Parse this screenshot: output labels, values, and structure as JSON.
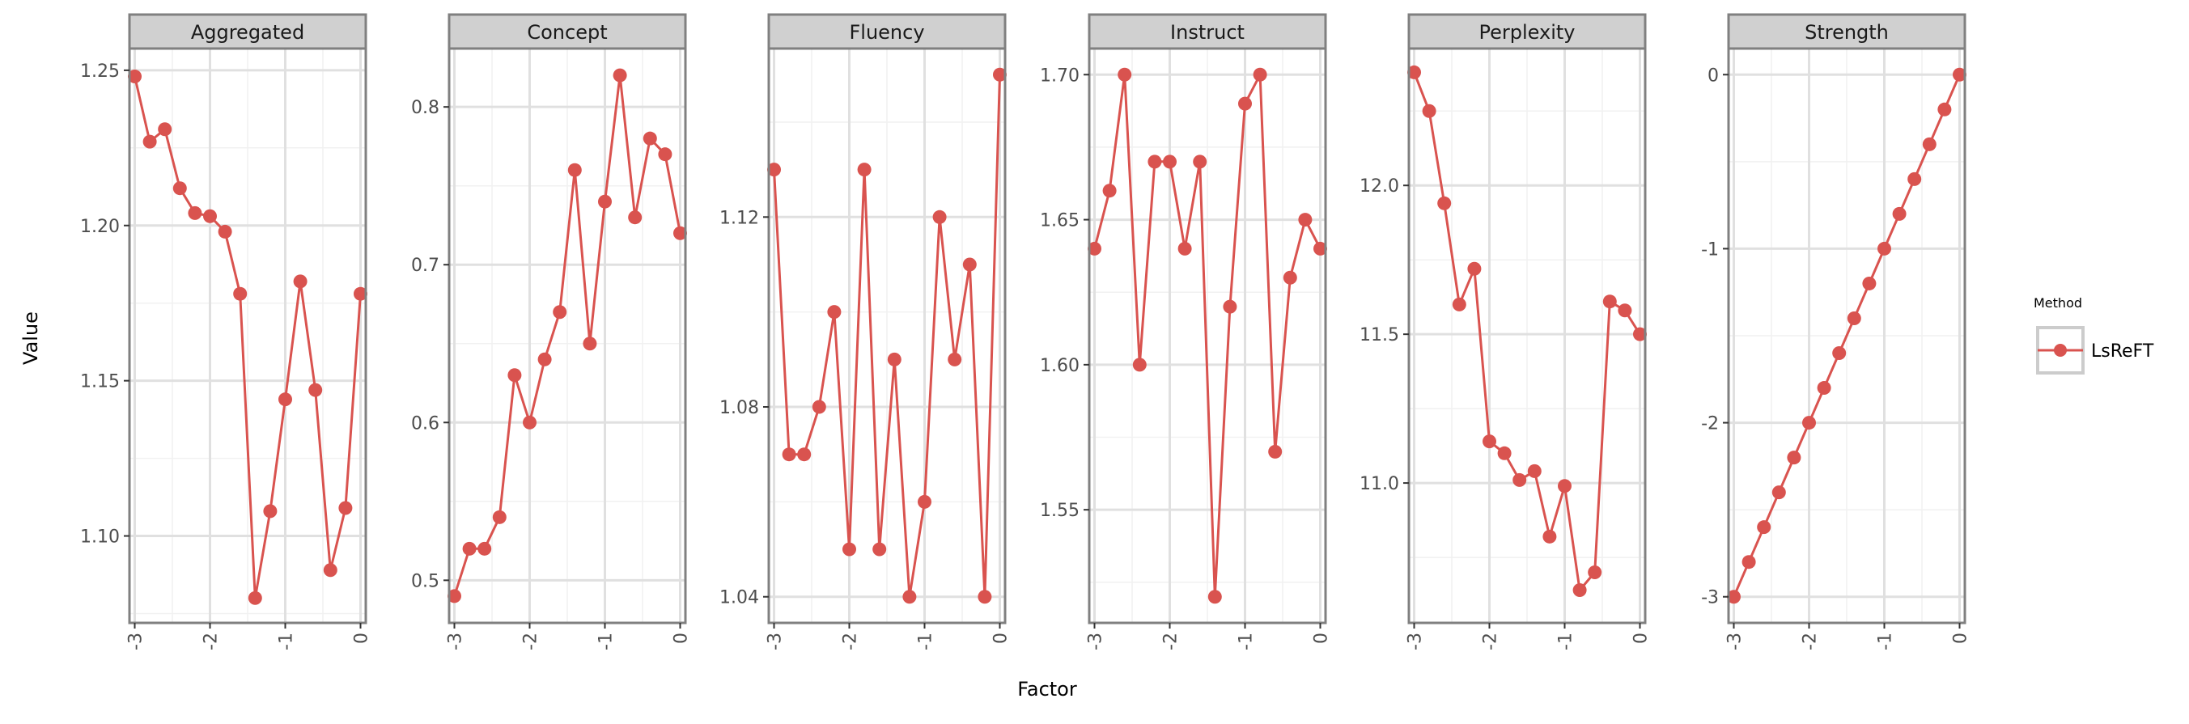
{
  "chart_data": {
    "type": "line",
    "xlabel": "Factor",
    "ylabel": "Value",
    "x": [
      -3.0,
      -2.8,
      -2.6,
      -2.4,
      -2.2,
      -2.0,
      -1.8,
      -1.6,
      -1.4,
      -1.2,
      -1.0,
      -0.8,
      -0.6,
      -0.4,
      -0.2,
      0.0
    ],
    "x_ticks": [
      -3,
      -2,
      -1,
      0
    ],
    "x_tick_labels": [
      "-3",
      "-2",
      "-1",
      "0"
    ],
    "xlim": [
      -3.07,
      0.07
    ],
    "line_color": "#d9534f",
    "legend": {
      "title": "Method",
      "entries": [
        "LsReFT"
      ],
      "position": "right"
    },
    "grid": true,
    "panels": [
      {
        "title": "Aggregated",
        "ylim": [
          1.072,
          1.257
        ],
        "y_ticks": [
          1.1,
          1.15,
          1.2,
          1.25
        ],
        "y_tick_labels": [
          "1.10",
          "1.15",
          "1.20",
          "1.25"
        ],
        "series": [
          {
            "name": "LsReFT",
            "values": [
              1.248,
              1.227,
              1.231,
              1.212,
              1.204,
              1.203,
              1.198,
              1.178,
              1.08,
              1.108,
              1.144,
              1.182,
              1.147,
              1.089,
              1.109,
              1.178
            ]
          }
        ]
      },
      {
        "title": "Concept",
        "ylim": [
          0.473,
          0.837
        ],
        "y_ticks": [
          0.5,
          0.6,
          0.7,
          0.8
        ],
        "y_tick_labels": [
          "0.5",
          "0.6",
          "0.7",
          "0.8"
        ],
        "series": [
          {
            "name": "LsReFT",
            "values": [
              0.49,
              0.52,
              0.52,
              0.54,
              0.63,
              0.6,
              0.64,
              0.67,
              0.76,
              0.65,
              0.74,
              0.82,
              0.73,
              0.78,
              0.77,
              0.72
            ]
          }
        ]
      },
      {
        "title": "Fluency",
        "ylim": [
          1.0345,
          1.1555
        ],
        "y_ticks": [
          1.04,
          1.08,
          1.12
        ],
        "y_tick_labels": [
          "1.04",
          "1.08",
          "1.12"
        ],
        "series": [
          {
            "name": "LsReFT",
            "values": [
              1.13,
              1.07,
              1.07,
              1.08,
              1.1,
              1.05,
              1.13,
              1.05,
              1.09,
              1.04,
              1.06,
              1.12,
              1.09,
              1.11,
              1.04,
              1.15
            ]
          }
        ]
      },
      {
        "title": "Instruct",
        "ylim": [
          1.511,
          1.709
        ],
        "y_ticks": [
          1.55,
          1.6,
          1.65,
          1.7
        ],
        "y_tick_labels": [
          "1.55",
          "1.60",
          "1.65",
          "1.70"
        ],
        "series": [
          {
            "name": "LsReFT",
            "values": [
              1.64,
              1.66,
              1.7,
              1.6,
              1.67,
              1.67,
              1.64,
              1.67,
              1.52,
              1.62,
              1.69,
              1.7,
              1.57,
              1.63,
              1.65,
              1.64
            ]
          }
        ]
      },
      {
        "title": "Perplexity",
        "ylim": [
          10.53,
          12.46
        ],
        "y_ticks": [
          11.0,
          11.5,
          12.0
        ],
        "y_tick_labels": [
          "11.0",
          "11.5",
          "12.0"
        ],
        "series": [
          {
            "name": "LsReFT",
            "values": [
              12.38,
              12.25,
              11.94,
              11.6,
              11.72,
              11.14,
              11.1,
              11.01,
              11.04,
              10.82,
              10.99,
              10.64,
              10.7,
              11.61,
              11.58,
              11.5
            ]
          }
        ]
      },
      {
        "title": "Strength",
        "ylim": [
          -3.15,
          0.15
        ],
        "y_ticks": [
          -3,
          -2,
          -1,
          0
        ],
        "y_tick_labels": [
          "-3",
          "-2",
          "-1",
          "0"
        ],
        "series": [
          {
            "name": "LsReFT",
            "values": [
              -3.0,
              -2.8,
              -2.6,
              -2.4,
              -2.2,
              -2.0,
              -1.8,
              -1.6,
              -1.4,
              -1.2,
              -1.0,
              -0.8,
              -0.6,
              -0.4,
              -0.2,
              0.0
            ]
          }
        ]
      }
    ]
  }
}
